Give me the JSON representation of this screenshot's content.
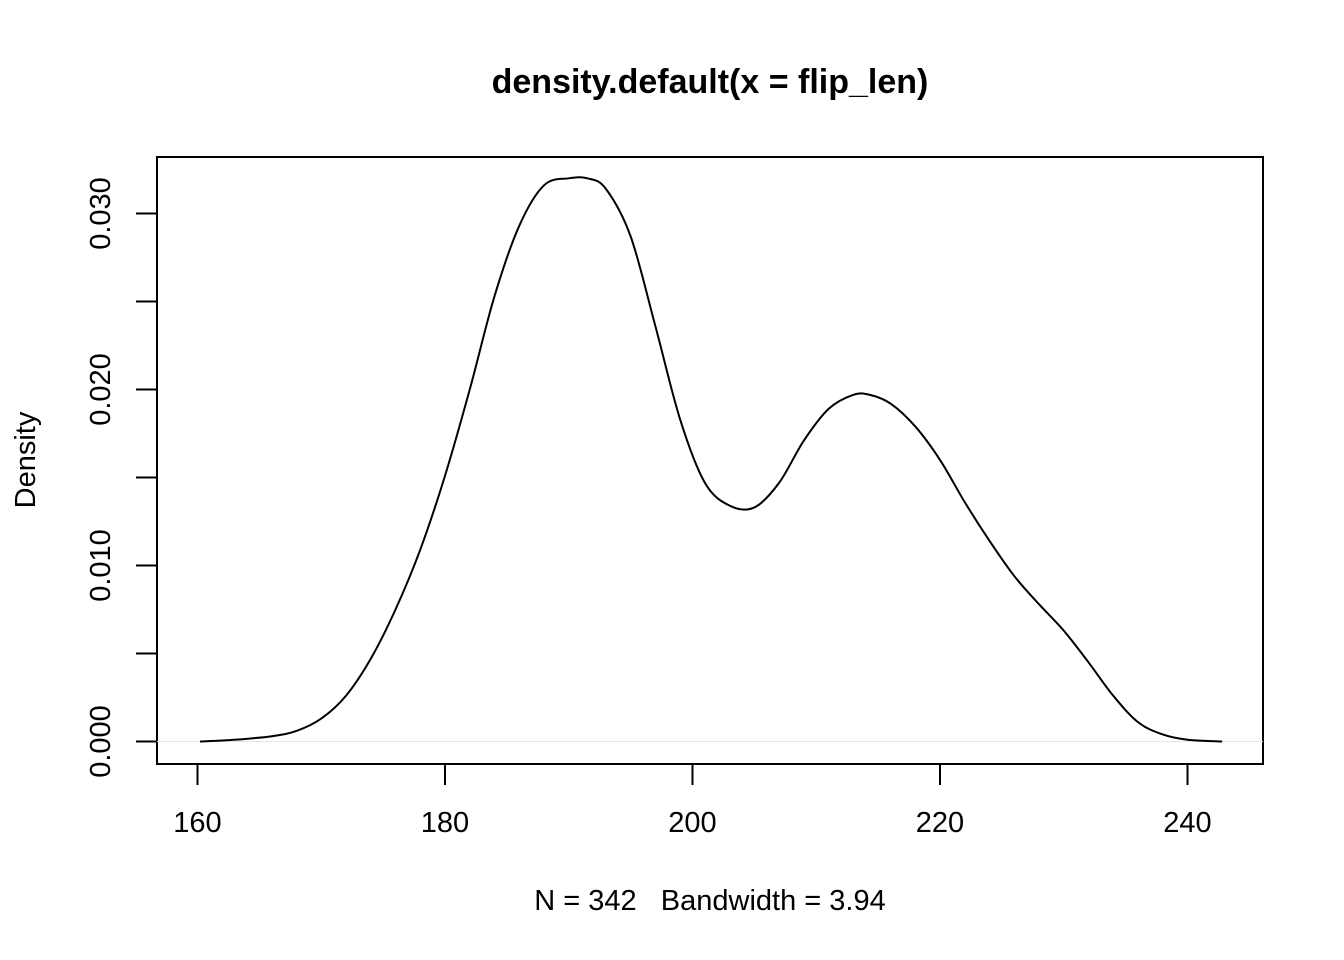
{
  "chart_data": {
    "type": "line",
    "title": "density.default(x = flip_len)",
    "xlabel": "N = 342   Bandwidth = 3.94",
    "ylabel": "Density",
    "xlim": [
      160,
      243
    ],
    "ylim": [
      0,
      0.032
    ],
    "x_ticks": [
      160,
      180,
      200,
      220,
      240
    ],
    "x_tick_labels": [
      "160",
      "180",
      "200",
      "220",
      "240"
    ],
    "y_ticks": [
      0,
      0.005,
      0.01,
      0.015,
      0.02,
      0.025,
      0.03
    ],
    "y_tick_labels": [
      "0.000",
      "",
      "0.010",
      "",
      "0.020",
      "",
      "0.030"
    ],
    "grid": false,
    "line_color": "#000000",
    "series": [
      {
        "x": [
          160.2,
          163,
          166,
          168,
          170,
          172,
          174,
          176,
          178,
          180,
          182,
          184,
          186,
          188,
          190,
          191.5,
          193,
          195,
          197,
          199,
          201,
          203,
          205,
          207,
          209,
          211,
          213,
          214.3,
          216,
          218,
          220,
          222,
          224,
          226,
          228,
          230,
          232,
          234,
          236,
          238,
          240,
          242.8
        ],
        "y": [
          0.0,
          0.0001,
          0.0003,
          0.0006,
          0.0013,
          0.0026,
          0.0047,
          0.0075,
          0.0109,
          0.0151,
          0.02,
          0.0253,
          0.0293,
          0.0316,
          0.032,
          0.032,
          0.0314,
          0.0287,
          0.0236,
          0.0183,
          0.0147,
          0.0134,
          0.0133,
          0.0147,
          0.0171,
          0.0189,
          0.0197,
          0.0197,
          0.0192,
          0.0179,
          0.016,
          0.0136,
          0.0114,
          0.0094,
          0.0078,
          0.0063,
          0.0045,
          0.0026,
          0.0011,
          0.0004,
          0.0001,
          0.0
        ]
      }
    ]
  }
}
